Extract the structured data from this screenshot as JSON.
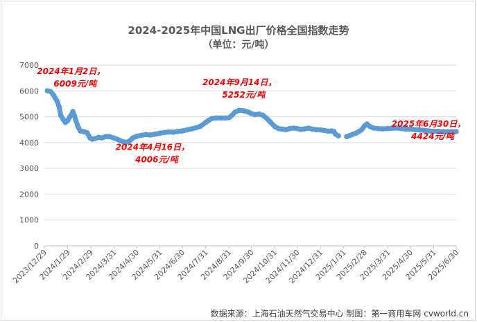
{
  "chart_data": {
    "type": "line",
    "title": "2024-2025年中国LNG出厂价格全国指数走势",
    "subtitle": "（单位：元/吨）",
    "source": "数据来源：上海石油天然气交易中心 制图：第一商用车网 cvworld.cn",
    "ylim": [
      0,
      7000
    ],
    "yticks": [
      0,
      1000,
      2000,
      3000,
      4000,
      5000,
      6000,
      7000
    ],
    "xlim": [
      "2023-12-29",
      "2025-06-30"
    ],
    "xticks": [
      "2023/12/29",
      "2024/1/29",
      "2024/2/29",
      "2024/3/31",
      "2024/4/30",
      "2024/5/31",
      "2024/6/30",
      "2024/7/31",
      "2024/8/31",
      "2024/9/30",
      "2024/10/31",
      "2024/11/30",
      "2024/12/31",
      "2025/1/31",
      "2025/2/28",
      "2025/3/31",
      "2025/4/30",
      "2025/5/31",
      "2025/6/30"
    ],
    "grid": true,
    "line_color": "#5b9bd5",
    "annotation_color": "#ff0000",
    "series": [
      {
        "segments": [
          [
            [
              "2024-01-02",
              6009
            ],
            [
              "2024-01-06",
              5980
            ],
            [
              "2024-01-10",
              5850
            ],
            [
              "2024-01-13",
              5700
            ],
            [
              "2024-01-15",
              5600
            ],
            [
              "2024-01-18",
              5350
            ],
            [
              "2024-01-20",
              5050
            ],
            [
              "2024-01-23",
              4900
            ],
            [
              "2024-01-26",
              4780
            ],
            [
              "2024-01-29",
              4850
            ],
            [
              "2024-02-01",
              5000
            ],
            [
              "2024-02-03",
              5080
            ],
            [
              "2024-02-05",
              5200
            ],
            [
              "2024-02-07",
              5050
            ],
            [
              "2024-02-09",
              4850
            ],
            [
              "2024-02-12",
              4600
            ],
            [
              "2024-02-15",
              4450
            ],
            [
              "2024-02-20",
              4420
            ],
            [
              "2024-02-24",
              4380
            ],
            [
              "2024-02-28",
              4170
            ],
            [
              "2024-03-02",
              4130
            ],
            [
              "2024-03-06",
              4160
            ],
            [
              "2024-03-10",
              4200
            ],
            [
              "2024-03-15",
              4180
            ],
            [
              "2024-03-20",
              4230
            ],
            [
              "2024-03-25",
              4230
            ],
            [
              "2024-03-30",
              4180
            ],
            [
              "2024-04-04",
              4130
            ],
            [
              "2024-04-08",
              4080
            ],
            [
              "2024-04-12",
              4030
            ],
            [
              "2024-04-16",
              4006
            ],
            [
              "2024-04-20",
              4050
            ],
            [
              "2024-04-25",
              4180
            ],
            [
              "2024-04-30",
              4240
            ],
            [
              "2024-05-06",
              4280
            ],
            [
              "2024-05-12",
              4310
            ],
            [
              "2024-05-18",
              4290
            ],
            [
              "2024-05-24",
              4320
            ],
            [
              "2024-05-31",
              4360
            ],
            [
              "2024-06-06",
              4390
            ],
            [
              "2024-06-12",
              4410
            ],
            [
              "2024-06-18",
              4400
            ],
            [
              "2024-06-24",
              4430
            ],
            [
              "2024-06-30",
              4450
            ],
            [
              "2024-07-06",
              4490
            ],
            [
              "2024-07-12",
              4530
            ],
            [
              "2024-07-18",
              4570
            ],
            [
              "2024-07-24",
              4630
            ],
            [
              "2024-07-31",
              4780
            ],
            [
              "2024-08-04",
              4860
            ],
            [
              "2024-08-08",
              4930
            ],
            [
              "2024-08-14",
              4950
            ],
            [
              "2024-08-20",
              4950
            ],
            [
              "2024-08-26",
              4950
            ],
            [
              "2024-08-31",
              4960
            ],
            [
              "2024-09-04",
              5050
            ],
            [
              "2024-09-08",
              5180
            ],
            [
              "2024-09-14",
              5252
            ],
            [
              "2024-09-20",
              5230
            ],
            [
              "2024-09-26",
              5180
            ],
            [
              "2024-09-30",
              5120
            ],
            [
              "2024-10-05",
              5080
            ],
            [
              "2024-10-10",
              5100
            ],
            [
              "2024-10-15",
              5060
            ],
            [
              "2024-10-20",
              4950
            ],
            [
              "2024-10-25",
              4800
            ],
            [
              "2024-10-31",
              4620
            ],
            [
              "2024-11-05",
              4540
            ],
            [
              "2024-11-10",
              4520
            ],
            [
              "2024-11-15",
              4500
            ],
            [
              "2024-11-20",
              4540
            ],
            [
              "2024-11-25",
              4560
            ],
            [
              "2024-11-30",
              4540
            ],
            [
              "2024-12-05",
              4510
            ],
            [
              "2024-12-10",
              4530
            ],
            [
              "2024-12-15",
              4560
            ],
            [
              "2024-12-20",
              4520
            ],
            [
              "2024-12-25",
              4500
            ],
            [
              "2024-12-31",
              4490
            ],
            [
              "2025-01-05",
              4470
            ],
            [
              "2025-01-10",
              4440
            ],
            [
              "2025-01-15",
              4450
            ],
            [
              "2025-01-18",
              4430
            ],
            [
              "2025-01-20",
              4330
            ],
            [
              "2025-01-24",
              4260
            ]
          ],
          [
            [
              "2025-02-04",
              4230
            ],
            [
              "2025-02-08",
              4270
            ],
            [
              "2025-02-12",
              4320
            ],
            [
              "2025-02-16",
              4360
            ],
            [
              "2025-02-20",
              4420
            ],
            [
              "2025-02-24",
              4500
            ],
            [
              "2025-02-28",
              4650
            ],
            [
              "2025-03-03",
              4720
            ],
            [
              "2025-03-07",
              4620
            ],
            [
              "2025-03-12",
              4560
            ],
            [
              "2025-03-18",
              4540
            ],
            [
              "2025-03-24",
              4530
            ],
            [
              "2025-03-31",
              4540
            ],
            [
              "2025-04-06",
              4560
            ],
            [
              "2025-04-12",
              4560
            ],
            [
              "2025-04-18",
              4540
            ],
            [
              "2025-04-24",
              4520
            ],
            [
              "2025-04-30",
              4520
            ],
            [
              "2025-05-06",
              4500
            ],
            [
              "2025-05-12",
              4490
            ],
            [
              "2025-05-18",
              4470
            ],
            [
              "2025-05-24",
              4450
            ],
            [
              "2025-05-31",
              4440
            ],
            [
              "2025-06-06",
              4430
            ],
            [
              "2025-06-12",
              4420
            ],
            [
              "2025-06-18",
              4420
            ],
            [
              "2025-06-24",
              4420
            ],
            [
              "2025-06-30",
              4424
            ]
          ]
        ]
      }
    ],
    "annotations": [
      {
        "date": "2024-01-02",
        "value": 6009,
        "line1": "2024年1月2日，",
        "line2": "6009元/吨"
      },
      {
        "date": "2024-04-16",
        "value": 4006,
        "line1": "2024年4月16日，",
        "line2": "4006元/吨"
      },
      {
        "date": "2024-09-14",
        "value": 5252,
        "line1": "2024年9月14日，",
        "line2": "5252元/吨"
      },
      {
        "date": "2025-06-30",
        "value": 4424,
        "line1": "2025年6月30日，",
        "line2": "4424元/吨"
      }
    ]
  }
}
